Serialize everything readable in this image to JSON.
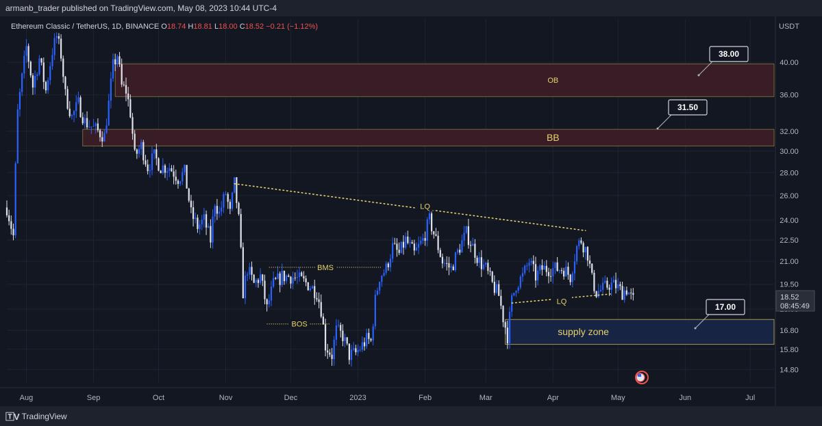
{
  "header": {
    "publish_line": "armanb_trader published on TradingView.com, May 08, 2023 10:44 UTC-4"
  },
  "legend": {
    "symbol_line": "Ethereum Classic / TetherUS, 1D, BINANCE",
    "ohlc": [
      {
        "label": "O",
        "value": "18.74"
      },
      {
        "label": "H",
        "value": "18.81"
      },
      {
        "label": "L",
        "value": "18.00"
      },
      {
        "label": "C",
        "value": "18.52"
      }
    ],
    "change": "−0.21 (−1.12%)",
    "up_color": "#26a69a",
    "down_color": "#ef5350"
  },
  "footer": {
    "brand": "TradingView",
    "icon": "tradingview-logo-icon"
  },
  "flag_icon": "us-flag-icon",
  "colors": {
    "background": "#131722",
    "panel": "#1e222d",
    "text": "#d1d4dc",
    "axis_text": "#b2b5be",
    "grid": "#1f2430",
    "candle_up": "#2962ff",
    "candle_down": "#e0e3eb",
    "zone_red": "#3a1d27",
    "zone_blue": "#172546",
    "annotation_yellow": "#e6d36b",
    "price_tag_bg": "#363a45"
  },
  "chart_data": {
    "type": "candlestick",
    "symbol": "Ethereum Classic / TetherUS",
    "interval": "1D",
    "exchange": "BINANCE",
    "y_axis": {
      "unit": "USDT",
      "scale": "log",
      "ticks": [
        "40.00",
        "36.00",
        "32.00",
        "30.00",
        "28.00",
        "26.00",
        "24.00",
        "22.50",
        "21.00",
        "19.50",
        "18.00",
        "16.80",
        "15.80",
        "14.80"
      ],
      "range": [
        14.2,
        46.0
      ]
    },
    "x_axis": {
      "range": [
        "2022-07-23",
        "2023-07-12"
      ],
      "ticks": [
        {
          "label": "Aug",
          "date": "2022-08-01"
        },
        {
          "label": "Sep",
          "date": "2022-09-01"
        },
        {
          "label": "Oct",
          "date": "2022-10-01"
        },
        {
          "label": "Nov",
          "date": "2022-11-01"
        },
        {
          "label": "Dec",
          "date": "2022-12-01"
        },
        {
          "label": "2023",
          "date": "2023-01-01"
        },
        {
          "label": "Feb",
          "date": "2023-02-01"
        },
        {
          "label": "Mar",
          "date": "2023-03-01"
        },
        {
          "label": "Apr",
          "date": "2023-04-01"
        },
        {
          "label": "May",
          "date": "2023-05-01"
        },
        {
          "label": "Jun",
          "date": "2023-06-01"
        },
        {
          "label": "Jul",
          "date": "2023-07-01"
        }
      ]
    },
    "last_price": {
      "value": "18.52",
      "countdown": "08:45:49"
    },
    "price_path": [
      [
        "2022-07-23",
        25.0
      ],
      [
        "2022-07-26",
        22.8
      ],
      [
        "2022-07-28",
        34.0
      ],
      [
        "2022-08-01",
        42.0
      ],
      [
        "2022-08-04",
        37.0
      ],
      [
        "2022-08-07",
        40.5
      ],
      [
        "2022-08-10",
        36.5
      ],
      [
        "2022-08-13",
        41.5
      ],
      [
        "2022-08-15",
        43.5
      ],
      [
        "2022-08-17",
        41.0
      ],
      [
        "2022-08-19",
        36.0
      ],
      [
        "2022-08-22",
        33.5
      ],
      [
        "2022-08-25",
        35.0
      ],
      [
        "2022-08-28",
        33.0
      ],
      [
        "2022-08-31",
        32.5
      ],
      [
        "2022-09-03",
        32.0
      ],
      [
        "2022-09-06",
        31.5
      ],
      [
        "2022-09-08",
        35.0
      ],
      [
        "2022-09-10",
        39.5
      ],
      [
        "2022-09-12",
        41.0
      ],
      [
        "2022-09-14",
        37.0
      ],
      [
        "2022-09-16",
        36.5
      ],
      [
        "2022-09-18",
        34.0
      ],
      [
        "2022-09-20",
        29.5
      ],
      [
        "2022-09-23",
        30.5
      ],
      [
        "2022-09-26",
        28.5
      ],
      [
        "2022-09-29",
        29.5
      ],
      [
        "2022-10-02",
        28.5
      ],
      [
        "2022-10-06",
        28.5
      ],
      [
        "2022-10-10",
        27.5
      ],
      [
        "2022-10-13",
        28.0
      ],
      [
        "2022-10-16",
        24.5
      ],
      [
        "2022-10-19",
        23.5
      ],
      [
        "2022-10-22",
        24.0
      ],
      [
        "2022-10-25",
        22.5
      ],
      [
        "2022-10-27",
        25.5
      ],
      [
        "2022-10-29",
        24.5
      ],
      [
        "2022-11-01",
        26.2
      ],
      [
        "2022-11-03",
        24.5
      ],
      [
        "2022-11-05",
        27.0
      ],
      [
        "2022-11-07",
        24.0
      ],
      [
        "2022-11-09",
        19.0
      ],
      [
        "2022-11-11",
        20.5
      ],
      [
        "2022-11-14",
        19.5
      ],
      [
        "2022-11-17",
        20.0
      ],
      [
        "2022-11-20",
        18.0
      ],
      [
        "2022-11-23",
        19.5
      ],
      [
        "2022-11-27",
        20.0
      ],
      [
        "2022-12-01",
        20.0
      ],
      [
        "2022-12-05",
        19.8
      ],
      [
        "2022-12-09",
        19.5
      ],
      [
        "2022-12-13",
        19.0
      ],
      [
        "2022-12-15",
        18.0
      ],
      [
        "2022-12-17",
        16.0
      ],
      [
        "2022-12-20",
        15.5
      ],
      [
        "2022-12-22",
        16.8
      ],
      [
        "2022-12-25",
        16.5
      ],
      [
        "2022-12-28",
        15.5
      ],
      [
        "2022-12-31",
        15.6
      ],
      [
        "2023-01-03",
        16.0
      ],
      [
        "2023-01-05",
        16.3
      ],
      [
        "2023-01-07",
        16.2
      ],
      [
        "2023-01-09",
        18.5
      ],
      [
        "2023-01-11",
        20.0
      ],
      [
        "2023-01-14",
        20.5
      ],
      [
        "2023-01-17",
        22.0
      ],
      [
        "2023-01-20",
        21.5
      ],
      [
        "2023-01-23",
        22.5
      ],
      [
        "2023-01-27",
        21.5
      ],
      [
        "2023-01-31",
        22.5
      ],
      [
        "2023-02-03",
        24.0
      ],
      [
        "2023-02-06",
        22.5
      ],
      [
        "2023-02-09",
        21.0
      ],
      [
        "2023-02-13",
        20.5
      ],
      [
        "2023-02-17",
        22.0
      ],
      [
        "2023-02-20",
        23.0
      ],
      [
        "2023-02-23",
        22.0
      ],
      [
        "2023-02-26",
        21.0
      ],
      [
        "2023-03-01",
        20.5
      ],
      [
        "2023-03-04",
        19.5
      ],
      [
        "2023-03-07",
        18.8
      ],
      [
        "2023-03-09",
        17.5
      ],
      [
        "2023-03-11",
        16.5
      ],
      [
        "2023-03-13",
        18.5
      ],
      [
        "2023-03-15",
        19.5
      ],
      [
        "2023-03-18",
        20.0
      ],
      [
        "2023-03-21",
        21.0
      ],
      [
        "2023-03-24",
        20.0
      ],
      [
        "2023-03-27",
        20.5
      ],
      [
        "2023-03-31",
        20.5
      ],
      [
        "2023-04-03",
        20.5
      ],
      [
        "2023-04-06",
        20.5
      ],
      [
        "2023-04-09",
        20.0
      ],
      [
        "2023-04-12",
        22.0
      ],
      [
        "2023-04-14",
        22.5
      ],
      [
        "2023-04-17",
        21.5
      ],
      [
        "2023-04-19",
        19.8
      ],
      [
        "2023-04-21",
        19.0
      ],
      [
        "2023-04-24",
        19.2
      ],
      [
        "2023-04-27",
        19.5
      ],
      [
        "2023-04-30",
        19.4
      ],
      [
        "2023-05-03",
        19.0
      ],
      [
        "2023-05-05",
        19.2
      ],
      [
        "2023-05-07",
        18.7
      ],
      [
        "2023-05-08",
        18.52
      ]
    ],
    "zones": [
      {
        "label": "OB",
        "from": "2022-09-11",
        "top": 39.8,
        "bottom": 35.8,
        "color": "#3a1d27",
        "tag": "38.00",
        "label_date": "2023-04-01"
      },
      {
        "label": "BB",
        "from": "2022-08-27",
        "top": 32.2,
        "bottom": 30.5,
        "color": "#3a1d27",
        "tag": "31.50",
        "label_date": "2023-04-01"
      },
      {
        "label": "supply zone",
        "from": "2023-03-10",
        "top": 17.4,
        "bottom": 16.05,
        "color": "#172546",
        "tag": "17.00",
        "label_date": "2023-04-15"
      }
    ],
    "annotations": [
      {
        "label": "LQ",
        "type": "dotted-line",
        "from": [
          "2022-11-05",
          27.0
        ],
        "to": [
          "2023-04-16",
          23.2
        ],
        "label_at": [
          "2023-02-01",
          25.1
        ]
      },
      {
        "label": "LQ",
        "type": "dotted-line",
        "from": [
          "2023-03-13",
          18.35
        ],
        "to": [
          "2023-04-28",
          18.9
        ],
        "label_at": [
          "2023-04-05",
          18.45
        ]
      },
      {
        "label": "BMS",
        "type": "dotted-line",
        "from": [
          "2022-11-21",
          20.6
        ],
        "to": [
          "2023-01-12",
          20.6
        ],
        "label_at": [
          "2022-12-17",
          20.6
        ]
      },
      {
        "label": "BOS",
        "type": "dotted-line",
        "from": [
          "2022-11-20",
          17.15
        ],
        "to": [
          "2022-12-19",
          17.15
        ],
        "label_at": [
          "2022-12-05",
          17.15
        ]
      }
    ]
  }
}
